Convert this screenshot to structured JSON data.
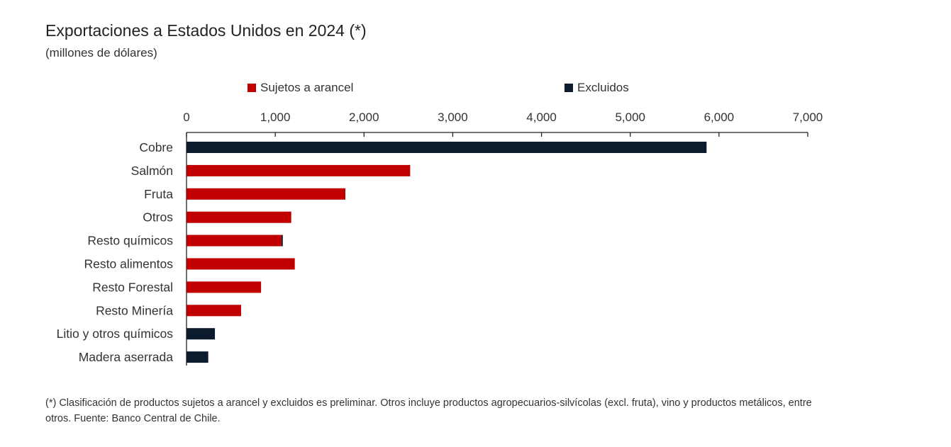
{
  "title": "Exportaciones a Estados Unidos en 2024 (*)",
  "subtitle": "(millones de dólares)",
  "footnote": "(*) Clasificación de productos sujetos a arancel y excluidos es preliminar. Otros incluye productos agropecuarios-silvícolas (excl. fruta), vino y productos metálicos, entre otros. Fuente: Banco Central de Chile.",
  "colors": {
    "sujetos": "#c00000",
    "excluidos": "#0d1b2e"
  },
  "chart_data": {
    "type": "bar",
    "orientation": "horizontal",
    "stacked": true,
    "title": "Exportaciones a Estados Unidos en 2024 (*)",
    "subtitle": "(millones de dólares)",
    "categories": [
      "Cobre",
      "Salmón",
      "Fruta",
      "Otros",
      "Resto químicos",
      "Resto alimentos",
      "Resto Forestal",
      "Resto Minería",
      "Litio y otros químicos",
      "Madera aserrada"
    ],
    "series": [
      {
        "name": "Sujetos a arancel",
        "color": "#c00000",
        "values": [
          0,
          2520,
          1790,
          1180,
          1070,
          1220,
          840,
          615,
          0,
          0
        ]
      },
      {
        "name": "Excluidos",
        "color": "#0d1b2e",
        "values": [
          5860,
          0,
          0,
          0,
          15,
          0,
          0,
          0,
          320,
          245
        ]
      }
    ],
    "xlim": [
      0,
      7000
    ],
    "xticks": [
      0,
      1000,
      2000,
      3000,
      4000,
      5000,
      6000,
      7000
    ],
    "xtick_labels": [
      "0",
      "1,000",
      "2,000",
      "3,000",
      "4,000",
      "5,000",
      "6,000",
      "7,000"
    ],
    "xaxis_position": "top",
    "legend_position": "top",
    "grid": false
  }
}
